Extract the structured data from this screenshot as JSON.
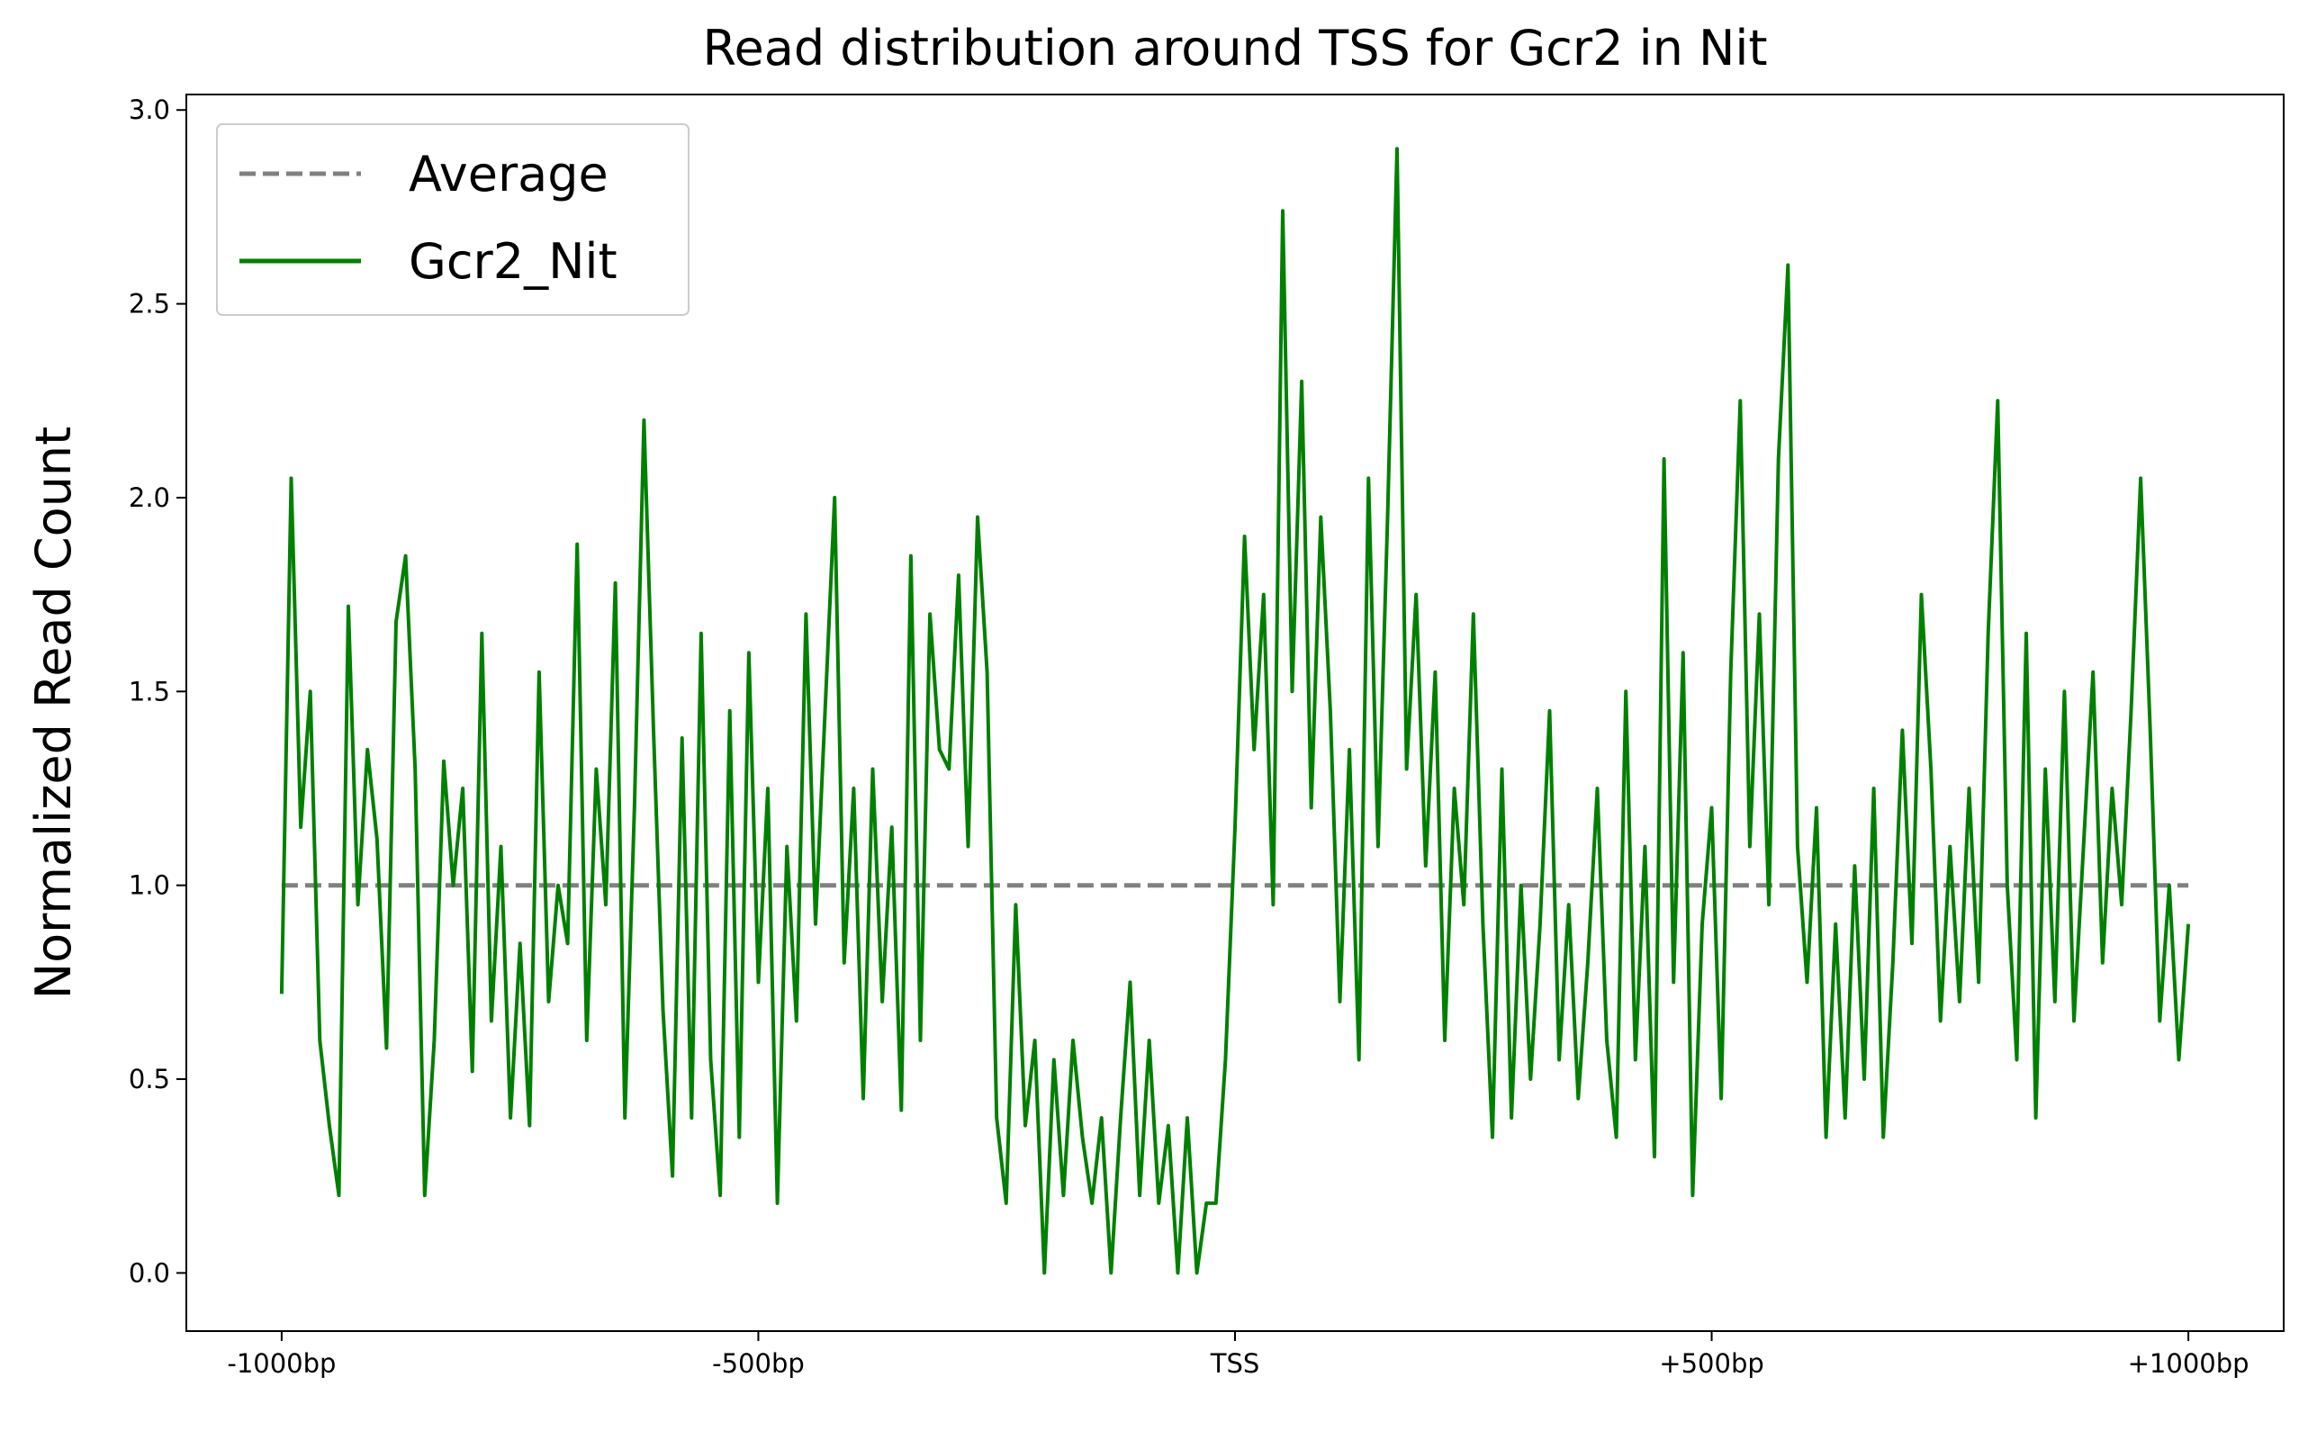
{
  "chart_data": {
    "type": "line",
    "title": "Read distribution around TSS for Gcr2 in Nit",
    "y_label": "Normalized Read Count",
    "xlim": [
      -1100,
      1100
    ],
    "ylim": [
      -0.15,
      3.04
    ],
    "xticks": [
      {
        "value": -1000,
        "label": "-1000bp"
      },
      {
        "value": -500,
        "label": "-500bp"
      },
      {
        "value": 0,
        "label": "TSS"
      },
      {
        "value": 500,
        "label": "+500bp"
      },
      {
        "value": 1000,
        "label": "+1000bp"
      }
    ],
    "yticks": [
      {
        "value": 0,
        "label": "0.0"
      },
      0.5,
      {
        "value": 1,
        "label": "1.0"
      },
      1.5,
      {
        "value": 2,
        "label": "2.0"
      },
      2.5,
      {
        "value": 3,
        "label": "3.0"
      }
    ],
    "legend": "upper left",
    "series": [
      {
        "name": "Average",
        "color": "#808080",
        "dash": true,
        "x": [
          -1000,
          1000
        ],
        "values": [
          1,
          1
        ]
      },
      {
        "name": "Gcr2_Nit",
        "color": "#008000",
        "dash": false,
        "x": [
          -1000,
          -990,
          -980,
          -970,
          -960,
          -950,
          -940,
          -930,
          -920,
          -910,
          -900,
          -890,
          -880,
          -870,
          -860,
          -850,
          -840,
          -830,
          -820,
          -810,
          -800,
          -790,
          -780,
          -770,
          -760,
          -750,
          -740,
          -730,
          -720,
          -710,
          -700,
          -690,
          -680,
          -670,
          -660,
          -650,
          -640,
          -630,
          -620,
          -610,
          -600,
          -590,
          -580,
          -570,
          -560,
          -550,
          -540,
          -530,
          -520,
          -510,
          -500,
          -490,
          -480,
          -470,
          -460,
          -450,
          -440,
          -430,
          -420,
          -410,
          -400,
          -390,
          -380,
          -370,
          -360,
          -350,
          -340,
          -330,
          -320,
          -310,
          -300,
          -290,
          -280,
          -270,
          -260,
          -250,
          -240,
          -230,
          -220,
          -210,
          -200,
          -190,
          -180,
          -170,
          -160,
          -150,
          -140,
          -130,
          -120,
          -110,
          -100,
          -90,
          -80,
          -70,
          -60,
          -50,
          -40,
          -30,
          -20,
          -10,
          0,
          10,
          20,
          30,
          40,
          50,
          60,
          70,
          80,
          90,
          100,
          110,
          120,
          130,
          140,
          150,
          160,
          170,
          180,
          190,
          200,
          210,
          220,
          230,
          240,
          250,
          260,
          270,
          280,
          290,
          300,
          310,
          320,
          330,
          340,
          350,
          360,
          370,
          380,
          390,
          400,
          410,
          420,
          430,
          440,
          450,
          460,
          470,
          480,
          490,
          500,
          510,
          520,
          530,
          540,
          550,
          560,
          570,
          580,
          590,
          600,
          610,
          620,
          630,
          640,
          650,
          660,
          670,
          680,
          690,
          700,
          710,
          720,
          730,
          740,
          750,
          760,
          770,
          780,
          790,
          800,
          810,
          820,
          830,
          840,
          850,
          860,
          870,
          880,
          890,
          900,
          910,
          920,
          930,
          940,
          950,
          960,
          970,
          980,
          990,
          1000
        ],
        "values": [
          0.72,
          2.05,
          1.15,
          1.5,
          0.6,
          0.38,
          0.2,
          1.72,
          0.95,
          1.35,
          1.12,
          0.58,
          1.68,
          1.85,
          1.3,
          0.2,
          0.6,
          1.32,
          1.0,
          1.25,
          0.52,
          1.65,
          0.65,
          1.1,
          0.4,
          0.85,
          0.38,
          1.55,
          0.7,
          1.0,
          0.85,
          1.88,
          0.6,
          1.3,
          0.95,
          1.78,
          0.4,
          1.2,
          2.2,
          1.4,
          0.68,
          0.25,
          1.38,
          0.4,
          1.65,
          0.55,
          0.2,
          1.45,
          0.35,
          1.6,
          0.75,
          1.25,
          0.18,
          1.1,
          0.65,
          1.7,
          0.9,
          1.45,
          2.0,
          0.8,
          1.25,
          0.45,
          1.3,
          0.7,
          1.15,
          0.42,
          1.85,
          0.6,
          1.7,
          1.35,
          1.3,
          1.8,
          1.1,
          1.95,
          1.55,
          0.4,
          0.18,
          0.95,
          0.38,
          0.6,
          0.0,
          0.55,
          0.2,
          0.6,
          0.35,
          0.18,
          0.4,
          0.0,
          0.4,
          0.75,
          0.2,
          0.6,
          0.18,
          0.38,
          0.0,
          0.4,
          0.0,
          0.18,
          0.18,
          0.55,
          1.15,
          1.9,
          1.35,
          1.75,
          0.95,
          2.74,
          1.5,
          2.3,
          1.2,
          1.95,
          1.45,
          0.7,
          1.35,
          0.55,
          2.05,
          1.1,
          1.95,
          2.9,
          1.3,
          1.75,
          1.05,
          1.55,
          0.6,
          1.25,
          0.95,
          1.7,
          0.9,
          0.35,
          1.3,
          0.4,
          1.0,
          0.5,
          0.9,
          1.45,
          0.55,
          0.95,
          0.45,
          0.8,
          1.25,
          0.6,
          0.35,
          1.5,
          0.55,
          1.1,
          0.3,
          2.1,
          0.75,
          1.6,
          0.2,
          0.9,
          1.2,
          0.45,
          1.55,
          2.25,
          1.1,
          1.7,
          0.95,
          2.1,
          2.6,
          1.1,
          0.75,
          1.2,
          0.35,
          0.9,
          0.4,
          1.05,
          0.5,
          1.25,
          0.35,
          0.8,
          1.4,
          0.85,
          1.75,
          1.3,
          0.65,
          1.1,
          0.7,
          1.25,
          0.75,
          1.65,
          2.25,
          1.0,
          0.55,
          1.65,
          0.4,
          1.3,
          0.7,
          1.5,
          0.65,
          1.1,
          1.55,
          0.8,
          1.25,
          0.95,
          1.45,
          2.05,
          1.4,
          0.65,
          1.0,
          0.55,
          0.9
        ]
      }
    ]
  }
}
